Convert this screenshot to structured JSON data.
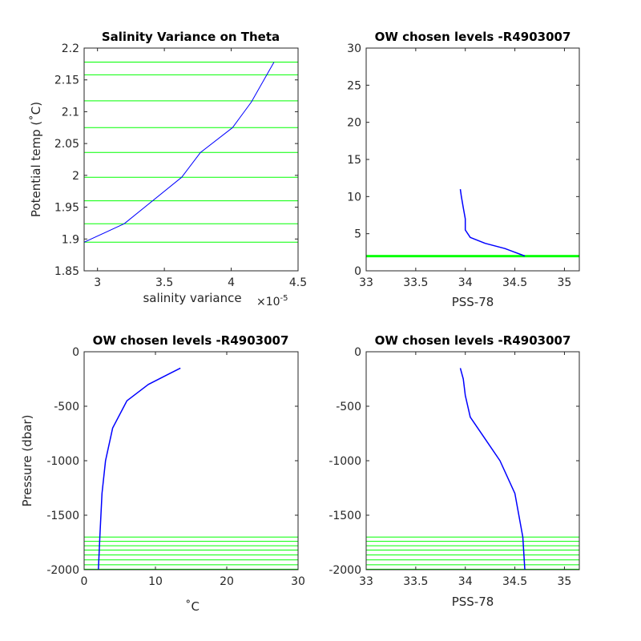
{
  "chart_data": [
    {
      "id": "p1",
      "type": "line",
      "title": "Salinity Variance on Theta",
      "xlabel": "salinity variance",
      "x_exponent_label": "×10",
      "x_exponent_power": "-5",
      "ylabel": "Potential temp (˚C)",
      "xlim": [
        2.9,
        4.5
      ],
      "ylim": [
        1.85,
        2.2
      ],
      "xticks": [
        3,
        3.5,
        4,
        4.5
      ],
      "xticklabels": [
        "3",
        "3.5",
        "4",
        "4.5"
      ],
      "yticks": [
        1.85,
        1.9,
        1.95,
        2,
        2.05,
        2.1,
        2.15,
        2.2
      ],
      "yticklabels": [
        "1.85",
        "1.9",
        "1.95",
        "2",
        "2.05",
        "2.1",
        "2.15",
        "2.2"
      ],
      "series": [
        {
          "color": "#0000ff",
          "x": [
            2.9,
            3.2,
            3.63,
            3.77,
            4.01,
            4.15,
            4.32
          ],
          "y": [
            1.895,
            1.924,
            1.997,
            2.036,
            2.075,
            2.115,
            2.178
          ]
        }
      ],
      "hlines": {
        "color": "#00ff00",
        "y": [
          1.895,
          1.924,
          1.96,
          1.997,
          2.036,
          2.075,
          2.117,
          2.158,
          2.178
        ]
      }
    },
    {
      "id": "p2",
      "type": "line",
      "title": "OW chosen levels -R4903007",
      "xlabel": "PSS-78",
      "ylabel": "",
      "xlim": [
        33,
        35.15
      ],
      "ylim": [
        0,
        30
      ],
      "xticks": [
        33,
        33.5,
        34,
        34.5,
        35
      ],
      "xticklabels": [
        "33",
        "33.5",
        "34",
        "34.5",
        "35"
      ],
      "yticks": [
        0,
        5,
        10,
        15,
        20,
        25,
        30
      ],
      "yticklabels": [
        "0",
        "5",
        "10",
        "15",
        "20",
        "25",
        "30"
      ],
      "series": [
        {
          "color": "#0000ff",
          "x": [
            34.6,
            34.4,
            34.2,
            34.05,
            34.0,
            34.0,
            33.98,
            33.96,
            33.95
          ],
          "y": [
            2.0,
            3.0,
            3.7,
            4.5,
            5.5,
            7.0,
            8.5,
            10.0,
            11.0
          ]
        }
      ],
      "hlines": {
        "color": "#00ff00",
        "y": [
          1.88,
          1.9,
          1.92,
          1.94,
          1.96,
          1.98,
          2.0,
          2.02,
          2.04,
          2.06,
          2.08
        ]
      }
    },
    {
      "id": "p3",
      "type": "line",
      "title": "OW chosen levels -R4903007",
      "xlabel": "˚C",
      "ylabel": "Pressure (dbar)",
      "xlim": [
        0,
        30
      ],
      "ylim": [
        -2000,
        0
      ],
      "xticks": [
        0,
        10,
        20,
        30
      ],
      "xticklabels": [
        "0",
        "10",
        "20",
        "30"
      ],
      "yticks": [
        -2000,
        -1500,
        -1000,
        -500,
        0
      ],
      "yticklabels": [
        "-2000",
        "-1500",
        "-1000",
        "-500",
        "0"
      ],
      "series": [
        {
          "color": "#0000ff",
          "x": [
            2.0,
            2.2,
            2.5,
            3.0,
            4.0,
            6.0,
            9.0,
            12.0,
            13.5
          ],
          "y": [
            -2000,
            -1700,
            -1300,
            -1000,
            -700,
            -450,
            -300,
            -200,
            -150
          ]
        }
      ],
      "hlines": {
        "color": "#00ff00",
        "y": [
          -1995,
          -1955,
          -1910,
          -1865,
          -1820,
          -1780,
          -1740,
          -1700
        ]
      }
    },
    {
      "id": "p4",
      "type": "line",
      "title": "OW chosen levels -R4903007",
      "xlabel": "PSS-78",
      "ylabel": "",
      "xlim": [
        33,
        35.15
      ],
      "ylim": [
        -2000,
        0
      ],
      "xticks": [
        33,
        33.5,
        34,
        34.5,
        35
      ],
      "xticklabels": [
        "33",
        "33.5",
        "34",
        "34.5",
        "35"
      ],
      "yticks": [
        -2000,
        -1500,
        -1000,
        -500,
        0
      ],
      "yticklabels": [
        "-2000",
        "-1500",
        "-1000",
        "-500",
        "0"
      ],
      "series": [
        {
          "color": "#0000ff",
          "x": [
            34.6,
            34.58,
            34.5,
            34.35,
            34.2,
            34.05,
            34.0,
            33.98,
            33.95
          ],
          "y": [
            -2000,
            -1700,
            -1300,
            -1000,
            -800,
            -600,
            -400,
            -250,
            -150
          ]
        }
      ],
      "hlines": {
        "color": "#00ff00",
        "y": [
          -1995,
          -1955,
          -1910,
          -1865,
          -1820,
          -1780,
          -1740,
          -1700
        ]
      }
    }
  ]
}
